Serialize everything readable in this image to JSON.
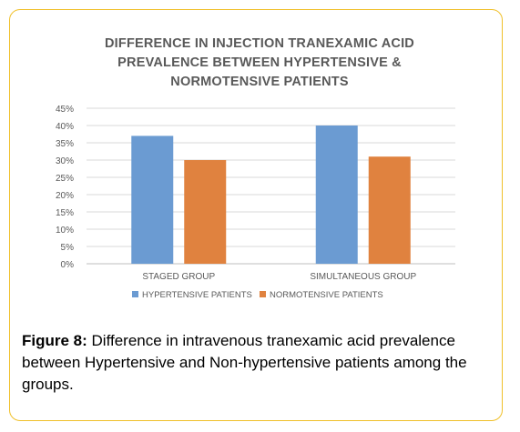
{
  "chart_data": {
    "type": "bar",
    "title_lines": [
      "DIFFERENCE IN INJECTION TRANEXAMIC ACID",
      "PREVALENCE BETWEEN HYPERTENSIVE &",
      "NORMOTENSIVE PATIENTS"
    ],
    "categories": [
      "STAGED GROUP",
      "SIMULTANEOUS GROUP"
    ],
    "series": [
      {
        "name": "HYPERTENSIVE PATIENTS",
        "color": "#6b9bd2",
        "values": [
          37,
          40
        ]
      },
      {
        "name": "NORMOTENSIVE PATIENTS",
        "color": "#e0823f",
        "values": [
          30,
          31
        ]
      }
    ],
    "y_ticks": [
      "0%",
      "5%",
      "10%",
      "15%",
      "20%",
      "25%",
      "30%",
      "35%",
      "40%",
      "45%"
    ],
    "ylim": [
      0,
      45
    ],
    "grid": true,
    "legend_position": "bottom"
  },
  "caption": {
    "label": "Figure 8:",
    "text": " Difference in intravenous tranexamic acid prevalence between Hypertensive and Non-hypertensive patients among the groups."
  },
  "colors": {
    "frame_border": "#f0c02a",
    "gridline": "#d9d9d9",
    "text_gray": "#595959"
  }
}
